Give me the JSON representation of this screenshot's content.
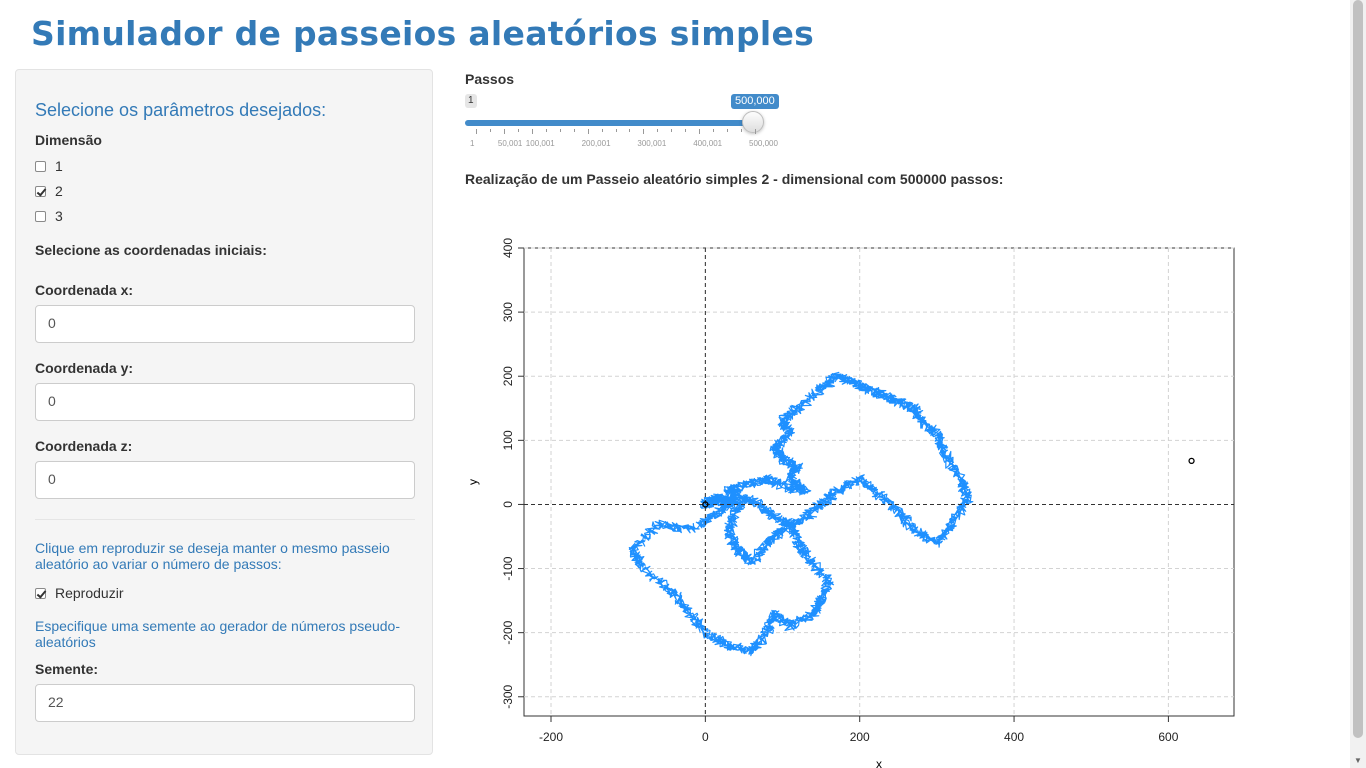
{
  "page_title": "Simulador de passeios aleatórios simples",
  "sidebar": {
    "heading": "Selecione os parâmetros desejados:",
    "dimension_label": "Dimensão",
    "dimension_options": [
      {
        "label": "1",
        "checked": false
      },
      {
        "label": "2",
        "checked": true
      },
      {
        "label": "3",
        "checked": false
      }
    ],
    "initial_coords_label": "Selecione as coordenadas iniciais:",
    "coord_x_label": "Coordenada x:",
    "coord_x_value": "0",
    "coord_y_label": "Coordenada y:",
    "coord_y_value": "0",
    "coord_z_label": "Coordenada z:",
    "coord_z_value": "0",
    "reproduce_help": "Clique em reproduzir se deseja manter o mesmo passeio aleatório ao variar o número de passos:",
    "reproduce_label": "Reproduzir",
    "reproduce_checked": true,
    "seed_help": "Especifique uma semente ao gerador de números pseudo-aleatórios",
    "seed_label": "Semente:",
    "seed_value": "22"
  },
  "main": {
    "steps_label": "Passos",
    "slider": {
      "min_label": "1",
      "value_label": "500,000",
      "min": 1,
      "max": 500000,
      "value": 500000,
      "tick_labels": [
        "1",
        "50,001",
        "100,001",
        "200,001",
        "300,001",
        "400,001",
        "500,000"
      ],
      "tick_values": [
        1,
        50001,
        100001,
        200001,
        300001,
        400001,
        500000
      ]
    },
    "caption": "Realização de um Passeio aleatório simples 2 - dimensional com 500000 passos:"
  },
  "chart_data": {
    "type": "line",
    "title": "",
    "xlabel": "x",
    "ylabel": "y",
    "xlim": [
      -235,
      685
    ],
    "ylim": [
      -330,
      400
    ],
    "xticks": [
      -200,
      0,
      200,
      400,
      600
    ],
    "yticks": [
      -300,
      -200,
      -100,
      0,
      100,
      200,
      300,
      400
    ],
    "grid": true,
    "reference_lines": {
      "x": 0,
      "y": 0
    },
    "series": [
      {
        "color": "#1e90ff",
        "x": [
          0,
          20,
          35,
          15,
          -20,
          -60,
          -95,
          -80,
          -40,
          -20,
          0,
          30,
          60,
          80,
          90,
          110,
          140,
          150,
          160,
          130,
          120,
          110,
          90,
          70,
          50,
          40,
          30,
          40,
          60,
          80,
          100,
          130,
          150,
          170,
          200,
          220,
          250,
          270,
          300,
          320,
          340,
          330,
          310,
          300,
          280,
          270,
          250,
          230,
          210,
          190,
          170,
          150,
          120,
          100,
          110,
          90,
          100,
          120,
          110,
          130,
          100,
          80,
          50,
          30,
          40,
          30,
          15,
          5,
          0
        ],
        "y": [
          0,
          10,
          5,
          -15,
          -40,
          -30,
          -70,
          -100,
          -140,
          -170,
          -200,
          -220,
          -230,
          -200,
          -170,
          -190,
          -170,
          -150,
          -120,
          -80,
          -60,
          -30,
          -20,
          0,
          10,
          -10,
          -40,
          -70,
          -90,
          -60,
          -40,
          -20,
          0,
          20,
          40,
          20,
          -10,
          -40,
          -60,
          -30,
          10,
          40,
          80,
          110,
          130,
          150,
          160,
          170,
          180,
          190,
          200,
          180,
          150,
          130,
          110,
          90,
          70,
          60,
          40,
          20,
          30,
          40,
          30,
          20,
          10,
          0,
          10,
          5,
          0
        ]
      }
    ]
  }
}
